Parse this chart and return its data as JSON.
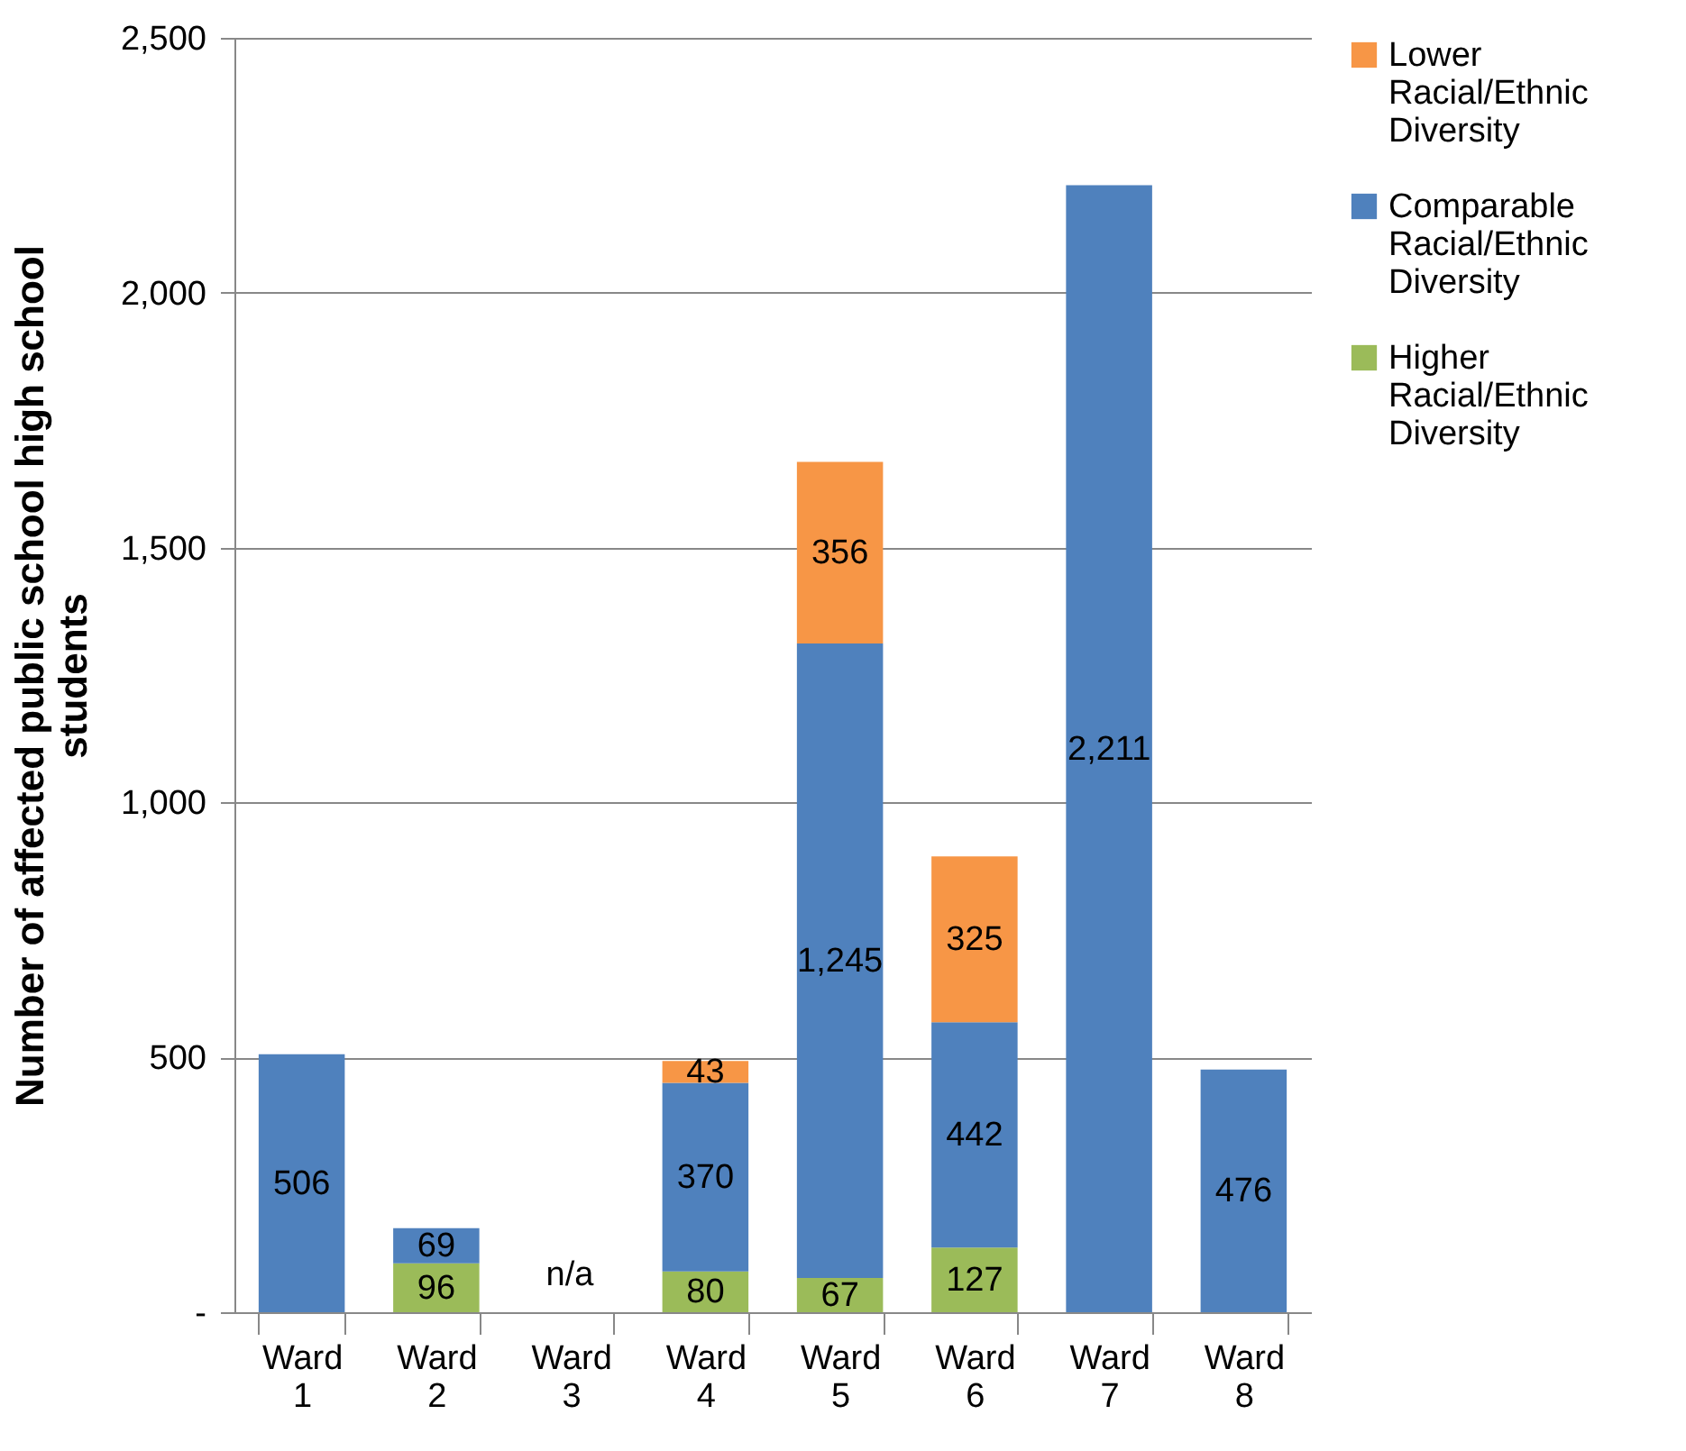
{
  "chart_data": {
    "type": "bar",
    "stacked": true,
    "ylabel": "Number of affected public school high school students",
    "categories": [
      "Ward 1",
      "Ward 2",
      "Ward 3",
      "Ward 4",
      "Ward 5",
      "Ward 6",
      "Ward 7",
      "Ward 8"
    ],
    "series": [
      {
        "name": "Higher Racial/Ethnic Diversity",
        "color": "#9bbb59",
        "values": [
          null,
          96,
          null,
          80,
          67,
          127,
          null,
          null
        ],
        "value_labels": [
          null,
          "96",
          null,
          "80",
          "67",
          "127",
          null,
          null
        ]
      },
      {
        "name": "Comparable Racial/Ethnic Diversity",
        "color": "#4f81bd",
        "values": [
          506,
          69,
          null,
          370,
          1245,
          442,
          2211,
          476
        ],
        "value_labels": [
          "506",
          "69",
          null,
          "370",
          "1,245",
          "442",
          "2,211",
          "476"
        ]
      },
      {
        "name": "Lower Racial/Ethnic Diversity",
        "color": "#f79646",
        "values": [
          null,
          null,
          null,
          43,
          356,
          325,
          null,
          null
        ],
        "value_labels": [
          null,
          null,
          null,
          "43",
          "356",
          "325",
          null,
          null
        ]
      }
    ],
    "ylim": [
      0,
      2500
    ],
    "yticks": [
      {
        "value": 0,
        "label": "-"
      },
      500,
      {
        "value": 1000,
        "label": "1,000"
      },
      {
        "value": 1500,
        "label": "1,500"
      },
      {
        "value": 2000,
        "label": "2,000"
      },
      {
        "value": 2500,
        "label": "2,500"
      }
    ],
    "grid": "y",
    "legend": "right",
    "annotations": [
      "n/a"
    ]
  }
}
